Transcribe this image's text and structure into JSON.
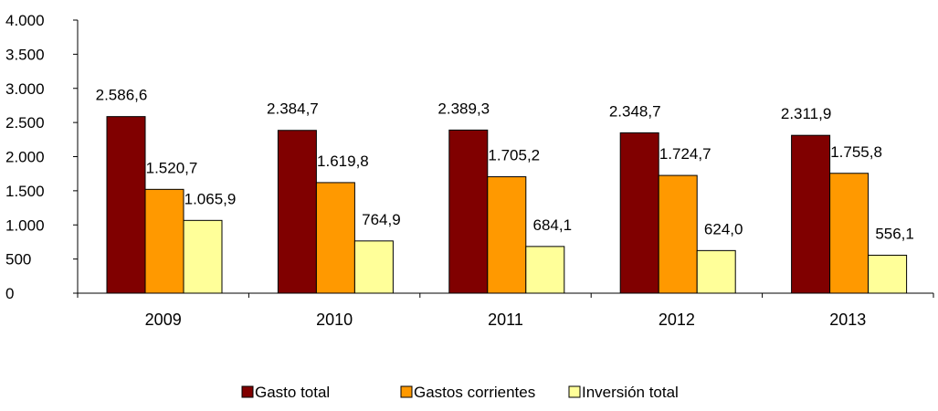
{
  "chart_data": {
    "type": "bar",
    "categories": [
      "2009",
      "2010",
      "2011",
      "2012",
      "2013"
    ],
    "series": [
      {
        "name": "Gasto total",
        "values": [
          2586.6,
          2384.7,
          2389.3,
          2348.7,
          2311.9
        ],
        "labels": [
          "2.586,6",
          "2.384,7",
          "2.389,3",
          "2.348,7",
          "2.311,9"
        ],
        "color": "#800000"
      },
      {
        "name": "Gastos corrientes",
        "values": [
          1520.7,
          1619.8,
          1705.2,
          1724.7,
          1755.8
        ],
        "labels": [
          "1.520,7",
          "1.619,8",
          "1.705,2",
          "1.724,7",
          "1.755,8"
        ],
        "color": "#FF9900"
      },
      {
        "name": "Inversión total",
        "values": [
          1065.9,
          764.9,
          684.1,
          624.0,
          556.1
        ],
        "labels": [
          "1.065,9",
          "764,9",
          "684,1",
          "624,0",
          "556,1"
        ],
        "color": "#FFFF99"
      }
    ],
    "y_ticks": [
      {
        "value": 0,
        "label": "0"
      },
      {
        "value": 500,
        "label": "500"
      },
      {
        "value": 1000,
        "label": "1.000"
      },
      {
        "value": 1500,
        "label": "1.500"
      },
      {
        "value": 2000,
        "label": "2.000"
      },
      {
        "value": 2500,
        "label": "2.500"
      },
      {
        "value": 3000,
        "label": "3.000"
      },
      {
        "value": 3500,
        "label": "3.500"
      },
      {
        "value": 4000,
        "label": "4.000"
      }
    ],
    "ylim": [
      0,
      4000
    ],
    "grid": false,
    "legend_position": "bottom"
  }
}
